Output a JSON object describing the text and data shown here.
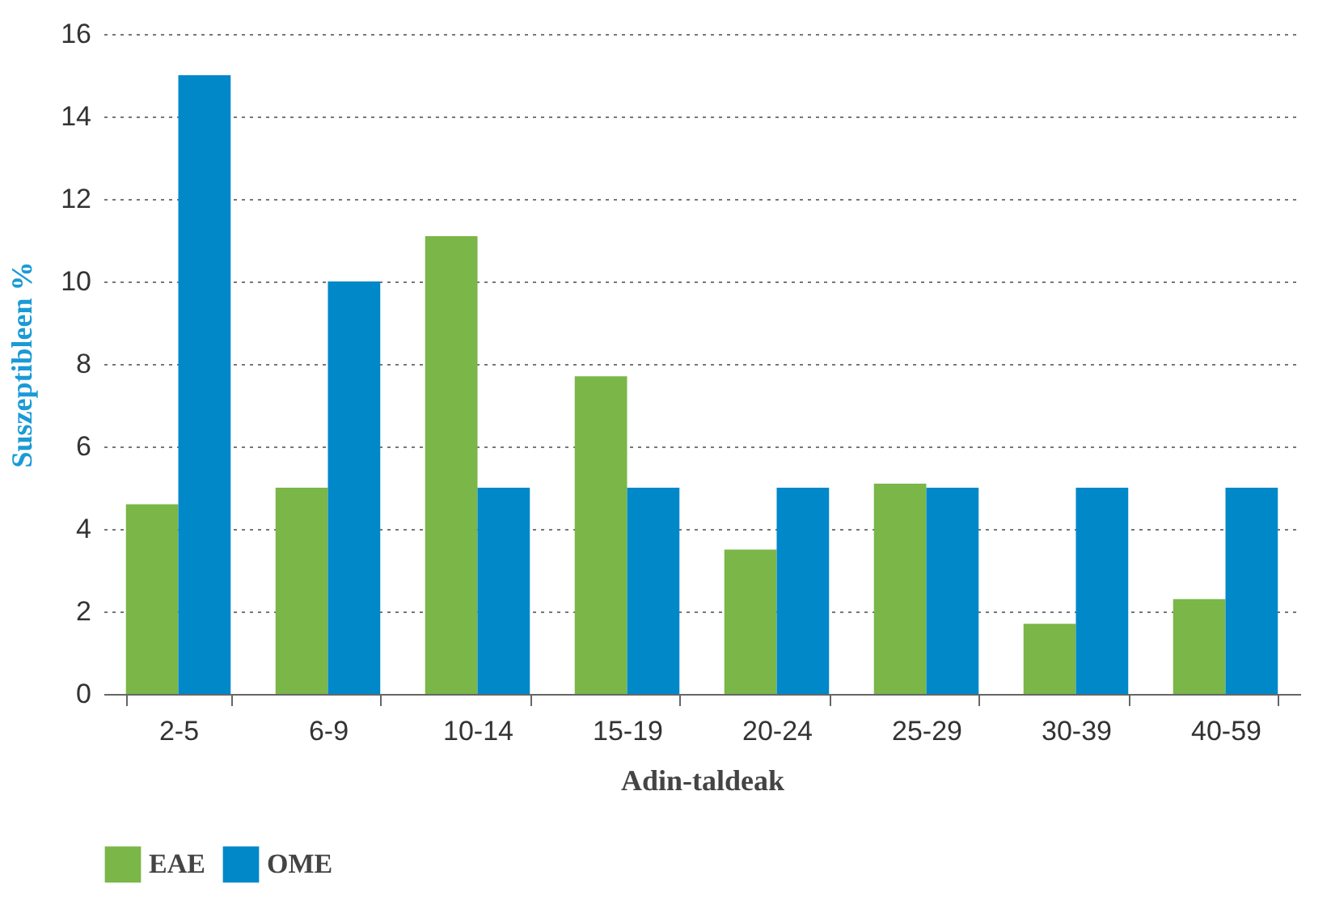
{
  "chart_data": {
    "type": "bar",
    "xlabel": "Adin-taldeak",
    "ylabel": "Suszeptibleen %",
    "categories": [
      "2-5",
      "6-9",
      "10-14",
      "15-19",
      "20-24",
      "25-29",
      "30-39",
      "40-59"
    ],
    "series": [
      {
        "name": "EAE",
        "color": "#7ab648",
        "values": [
          4.6,
          5.0,
          11.1,
          7.7,
          3.5,
          5.1,
          1.7,
          2.3
        ]
      },
      {
        "name": "OME",
        "color": "#0088c9",
        "values": [
          15,
          10,
          5,
          5,
          5,
          5,
          5,
          5
        ]
      }
    ],
    "ylim": [
      0,
      16
    ],
    "yticks": [
      0,
      2,
      4,
      6,
      8,
      10,
      12,
      14,
      16
    ],
    "grid": "y",
    "legend": "bottom"
  }
}
